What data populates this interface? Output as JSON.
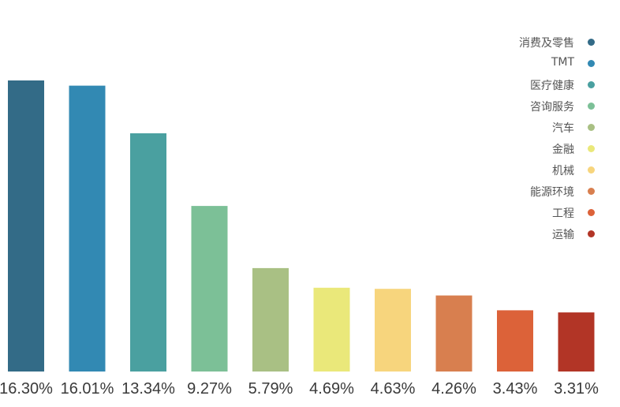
{
  "chart_data": {
    "type": "bar",
    "categories": [
      "消费及零售",
      "TMT",
      "医疗健康",
      "咨询服务",
      "汽车",
      "金融",
      "机械",
      "能源环境",
      "工程",
      "运输"
    ],
    "values": [
      16.3,
      16.01,
      13.34,
      9.27,
      5.79,
      4.69,
      4.63,
      4.26,
      3.43,
      3.31
    ],
    "value_labels": [
      "16.30%",
      "16.01%",
      "13.34%",
      "9.27%",
      "5.79%",
      "4.69%",
      "4.63%",
      "4.26%",
      "3.43%",
      "3.31%"
    ],
    "colors": [
      "#336b87",
      "#3289b3",
      "#4aa0a0",
      "#7cc097",
      "#a9c084",
      "#eae87a",
      "#f7d57d",
      "#d87f4f",
      "#dc6239",
      "#b23526"
    ],
    "title": "",
    "xlabel": "",
    "ylabel": "",
    "legend_position": "top-right",
    "grid": false,
    "ylim": [
      0,
      16.3
    ]
  }
}
